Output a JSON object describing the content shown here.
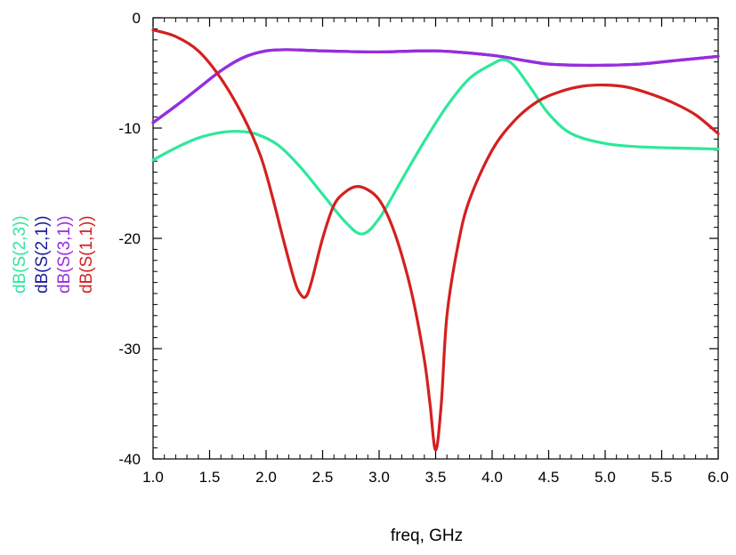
{
  "chart_data": {
    "type": "line",
    "title": "",
    "xlabel": "freq, GHz",
    "ylabel": "",
    "xlim": [
      1.0,
      6.0
    ],
    "ylim": [
      -40,
      0
    ],
    "x_ticks": [
      1.0,
      1.5,
      2.0,
      2.5,
      3.0,
      3.5,
      4.0,
      4.5,
      5.0,
      5.5,
      6.0
    ],
    "x_tick_labels": [
      "1.0",
      "1.5",
      "2.0",
      "2.5",
      "3.0",
      "3.5",
      "4.0",
      "4.5",
      "5.0",
      "5.5",
      "6.0"
    ],
    "y_ticks": [
      0,
      -10,
      -20,
      -30,
      -40
    ],
    "y_tick_labels": [
      "0",
      "-10",
      "-20",
      "-30",
      "-40"
    ],
    "grid": false,
    "legend_position": "left-vertical",
    "series": [
      {
        "name": "dB(S(2,3))",
        "color": "#2ee89a",
        "x": [
          1.0,
          1.2,
          1.4,
          1.6,
          1.75,
          1.9,
          2.1,
          2.3,
          2.5,
          2.7,
          2.85,
          3.0,
          3.2,
          3.4,
          3.6,
          3.8,
          4.0,
          4.1,
          4.2,
          4.35,
          4.5,
          4.7,
          5.0,
          5.3,
          5.6,
          6.0
        ],
        "y": [
          -12.9,
          -11.8,
          -10.9,
          -10.4,
          -10.3,
          -10.5,
          -11.5,
          -13.5,
          -16.0,
          -18.5,
          -19.6,
          -18.2,
          -14.7,
          -11.2,
          -8.0,
          -5.5,
          -4.2,
          -3.8,
          -4.4,
          -6.5,
          -8.7,
          -10.5,
          -11.4,
          -11.7,
          -11.8,
          -11.9
        ]
      },
      {
        "name": "dB(S(2,1))",
        "color": "#1a1a9a",
        "x": [
          1.0,
          1.2,
          1.4,
          1.6,
          1.8,
          2.0,
          2.2,
          2.5,
          3.0,
          3.5,
          4.0,
          4.3,
          4.5,
          4.75,
          5.0,
          5.3,
          5.6,
          6.0
        ],
        "y": [
          -9.5,
          -8.0,
          -6.4,
          -4.8,
          -3.6,
          -3.0,
          -2.9,
          -3.0,
          -3.1,
          -3.0,
          -3.4,
          -3.9,
          -4.2,
          -4.3,
          -4.3,
          -4.2,
          -3.9,
          -3.5
        ]
      },
      {
        "name": "dB(S(3,1))",
        "color": "#9a2be0",
        "x": [
          1.0,
          1.2,
          1.4,
          1.6,
          1.8,
          2.0,
          2.2,
          2.5,
          3.0,
          3.5,
          4.0,
          4.3,
          4.5,
          4.75,
          5.0,
          5.3,
          5.6,
          6.0
        ],
        "y": [
          -9.5,
          -8.0,
          -6.4,
          -4.8,
          -3.6,
          -3.0,
          -2.9,
          -3.0,
          -3.1,
          -3.0,
          -3.4,
          -3.9,
          -4.2,
          -4.3,
          -4.3,
          -4.2,
          -3.9,
          -3.5
        ]
      },
      {
        "name": "dB(S(1,1))",
        "color": "#d42020",
        "x": [
          1.0,
          1.2,
          1.4,
          1.6,
          1.8,
          1.95,
          2.05,
          2.15,
          2.25,
          2.3,
          2.35,
          2.4,
          2.5,
          2.6,
          2.7,
          2.8,
          2.9,
          3.0,
          3.1,
          3.2,
          3.3,
          3.4,
          3.45,
          3.5,
          3.55,
          3.6,
          3.7,
          3.8,
          4.0,
          4.2,
          4.4,
          4.6,
          4.8,
          5.0,
          5.2,
          5.4,
          5.6,
          5.8,
          6.0
        ],
        "y": [
          -1.1,
          -1.7,
          -3.0,
          -5.5,
          -9.0,
          -12.5,
          -16.0,
          -20.0,
          -23.8,
          -25.0,
          -25.3,
          -24.0,
          -20.0,
          -17.0,
          -15.8,
          -15.3,
          -15.6,
          -16.5,
          -18.5,
          -21.5,
          -25.5,
          -31.0,
          -35.0,
          -39.2,
          -35.0,
          -27.0,
          -20.5,
          -16.5,
          -12.0,
          -9.3,
          -7.6,
          -6.7,
          -6.2,
          -6.1,
          -6.3,
          -6.9,
          -7.7,
          -8.8,
          -10.5
        ]
      }
    ]
  }
}
